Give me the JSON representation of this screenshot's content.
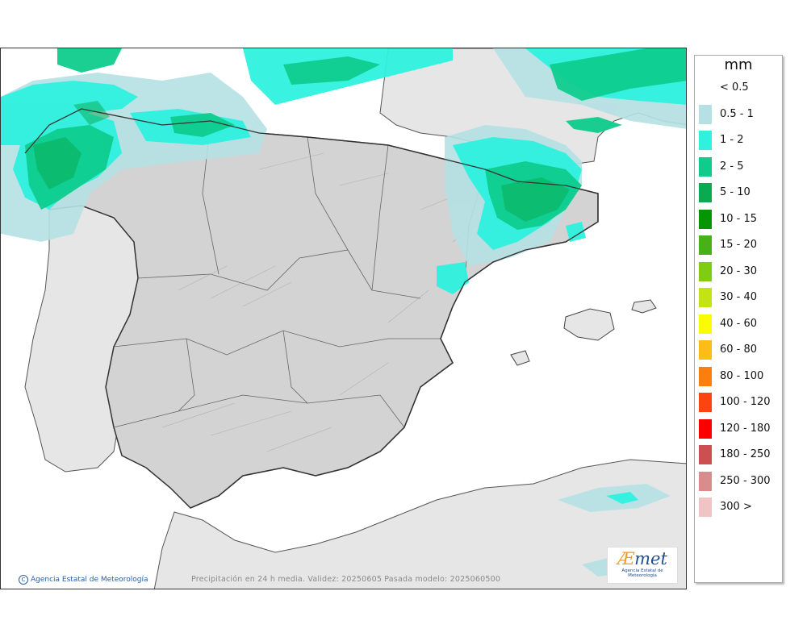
{
  "legend": {
    "unit": "mm",
    "items": [
      {
        "label": "< 0.5",
        "color": "#ffffff"
      },
      {
        "label": "0.5 - 1",
        "color": "#b5e1e4"
      },
      {
        "label": "1 - 2",
        "color": "#2ef1de"
      },
      {
        "label": "2 - 5",
        "color": "#0fcc8d"
      },
      {
        "label": "5 - 10",
        "color": "#08ab4f"
      },
      {
        "label": "10 - 15",
        "color": "#069605"
      },
      {
        "label": "15 - 20",
        "color": "#47b117"
      },
      {
        "label": "20 - 30",
        "color": "#7fcc10"
      },
      {
        "label": "30 - 40",
        "color": "#c4e314"
      },
      {
        "label": "40 - 60",
        "color": "#fcfc00"
      },
      {
        "label": "60 - 80",
        "color": "#fcbd16"
      },
      {
        "label": "80 - 100",
        "color": "#fc7e0d"
      },
      {
        "label": "100 - 120",
        "color": "#fc4410"
      },
      {
        "label": "120 - 180",
        "color": "#fc0000"
      },
      {
        "label": "180 - 250",
        "color": "#cc5050"
      },
      {
        "label": "250 - 300",
        "color": "#d98c8c"
      },
      {
        "label": "300 >",
        "color": "#f0c4c4"
      }
    ]
  },
  "map": {
    "credit": "Agencia Estatal de Meteorología",
    "caption": "Precipitación en 24 h media. Validez: 20250605 Pasada modelo: 2025060500",
    "logo_brand_a": "Æ",
    "logo_brand_rest": "met",
    "logo_sub": "Agencia Estatal de Meteorología"
  }
}
